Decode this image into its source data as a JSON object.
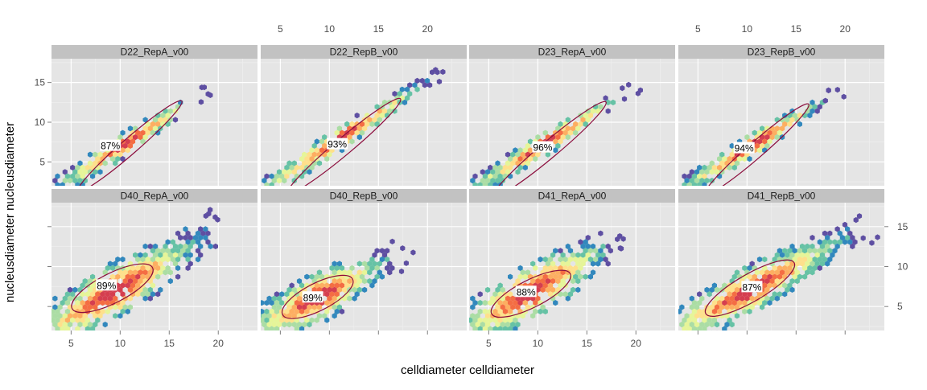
{
  "chart_data": {
    "type": "hexbin",
    "xlabel": "celldiameter celldiameter",
    "ylabel": "nucleusdiameter nucleusdiameter",
    "xlim": [
      3,
      24
    ],
    "ylim": [
      2,
      18
    ],
    "x_ticks": [
      5,
      10,
      15,
      20
    ],
    "y_ticks": [
      5,
      10,
      15
    ],
    "grid": true,
    "colors": {
      "panel_bg": "#e5e5e5",
      "strip_bg": "#c2c2c2",
      "grid_major": "#ffffff",
      "grid_minor": "#f0f0f0",
      "ellipse": "#8b0c3c",
      "density_low": "#5e4fa2",
      "density_high": "#d53e4f"
    },
    "panels": [
      {
        "title": "D22_RepA_v00",
        "label": "87%",
        "label_xy": [
          9.0,
          7.0
        ],
        "ellipse": {
          "cx": 11.0,
          "cy": 7.0,
          "rx": 7.0,
          "ry": 0.8,
          "angle": 41
        },
        "trend": {
          "x0": 4.0,
          "y0": 2.0,
          "x1": 17.0,
          "y1": 12.5,
          "spread": 0.6
        }
      },
      {
        "title": "D22_RepB_v00",
        "label": "93%",
        "label_xy": [
          10.8,
          7.2
        ],
        "ellipse": {
          "cx": 11.5,
          "cy": 7.0,
          "rx": 7.5,
          "ry": 0.85,
          "angle": 40
        },
        "trend": {
          "x0": 4.0,
          "y0": 2.0,
          "x1": 20.0,
          "y1": 15.3,
          "spread": 0.6
        }
      },
      {
        "title": "D23_RepA_v00",
        "label": "96%",
        "label_xy": [
          10.5,
          6.8
        ],
        "ellipse": {
          "cx": 11.2,
          "cy": 6.6,
          "rx": 7.5,
          "ry": 0.85,
          "angle": 40
        },
        "trend": {
          "x0": 4.0,
          "y0": 2.0,
          "x1": 18.0,
          "y1": 13.0,
          "spread": 0.6
        }
      },
      {
        "title": "D23_RepB_v00",
        "label": "94%",
        "label_xy": [
          9.7,
          6.7
        ],
        "ellipse": {
          "cx": 11.0,
          "cy": 6.6,
          "rx": 7.0,
          "ry": 0.8,
          "angle": 41
        },
        "trend": {
          "x0": 4.0,
          "y0": 2.0,
          "x1": 17.5,
          "y1": 12.5,
          "spread": 0.6
        }
      },
      {
        "title": "D40_RepA_v00",
        "label": "89%",
        "label_xy": [
          8.6,
          7.6
        ],
        "ellipse": {
          "cx": 9.2,
          "cy": 7.3,
          "rx": 4.6,
          "ry": 1.5,
          "angle": 27
        },
        "trend": {
          "x0": 3.5,
          "y0": 2.5,
          "x1": 19.0,
          "y1": 14.0,
          "spread": 1.4
        }
      },
      {
        "title": "D40_RepB_v00",
        "label": "89%",
        "label_xy": [
          8.3,
          6.1
        ],
        "ellipse": {
          "cx": 8.8,
          "cy": 6.2,
          "rx": 4.0,
          "ry": 1.4,
          "angle": 27
        },
        "trend": {
          "x0": 3.5,
          "y0": 2.5,
          "x1": 16.0,
          "y1": 11.0,
          "spread": 1.3
        }
      },
      {
        "title": "D41_RepA_v00",
        "label": "88%",
        "label_xy": [
          8.8,
          6.8
        ],
        "ellipse": {
          "cx": 9.3,
          "cy": 6.6,
          "rx": 4.5,
          "ry": 1.4,
          "angle": 27
        },
        "trend": {
          "x0": 3.5,
          "y0": 2.5,
          "x1": 17.5,
          "y1": 13.0,
          "spread": 1.4
        }
      },
      {
        "title": "D41_RepB_v00",
        "label": "87%",
        "label_xy": [
          10.5,
          7.4
        ],
        "ellipse": {
          "cx": 10.3,
          "cy": 7.3,
          "rx": 5.2,
          "ry": 1.4,
          "angle": 30
        },
        "trend": {
          "x0": 3.5,
          "y0": 2.5,
          "x1": 20.5,
          "y1": 14.0,
          "spread": 1.2
        }
      }
    ]
  }
}
